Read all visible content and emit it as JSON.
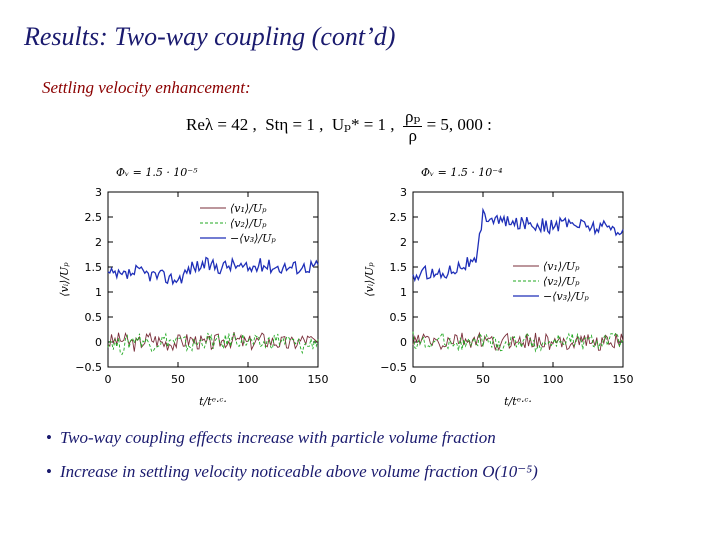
{
  "slide": {
    "title": "Results: Two-way coupling (cont’d)",
    "subtitle": "Settling velocity enhancement:",
    "params": {
      "re": "Reλ = 42 ,",
      "st": "Stη = 1 ,",
      "up": "Uₚ* = 1 ,",
      "rho_num": "ρₚ",
      "rho_den": "ρ",
      "rho_val": "= 5, 000 :"
    },
    "bullets": [
      "Two-way coupling effects increase with particle volume fraction",
      "Increase in settling velocity noticeable above volume fraction O(10⁻⁵)"
    ]
  },
  "colors": {
    "v1": "#7a2e3a",
    "v2": "#22aa22",
    "v3": "#1f2fb8",
    "title": "#1a1a6e",
    "subtitle": "#8b0000"
  },
  "chart_data": [
    {
      "type": "line",
      "title": "Φᵥ = 1.5 · 10⁻⁵",
      "xlabel": "t/tᵉ·ᶜ·",
      "ylabel": "⟨vᵢ⟩/Uₚ",
      "xlim": [
        0,
        150
      ],
      "ylim": [
        -0.5,
        3
      ],
      "xticks": [
        "0",
        "50",
        "100",
        "150"
      ],
      "yticks": [
        "−0.5",
        "0",
        "0.5",
        "1",
        "1.5",
        "2",
        "2.5",
        "3"
      ],
      "legend_position": "top-left",
      "x": [
        0,
        10,
        20,
        30,
        40,
        50,
        60,
        70,
        80,
        90,
        100,
        110,
        120,
        130,
        140,
        150
      ],
      "series": [
        {
          "name": "⟨v₁⟩/Uₚ",
          "style": "solid",
          "values": [
            0.0,
            0.05,
            -0.05,
            0.08,
            -0.02,
            0.0,
            0.05,
            -0.05,
            0.02,
            0.05,
            -0.03,
            0.05,
            0.0,
            -0.05,
            0.05,
            0.0
          ]
        },
        {
          "name": "⟨v₂⟩/Uₚ",
          "style": "dashed",
          "values": [
            0.05,
            -0.1,
            0.1,
            -0.05,
            0.05,
            0.0,
            -0.08,
            0.05,
            -0.05,
            0.08,
            0.0,
            -0.05,
            0.05,
            0.0,
            -0.1,
            0.05
          ]
        },
        {
          "name": "−⟨v₃⟩/Uₚ",
          "style": "solid",
          "values": [
            1.35,
            1.3,
            1.4,
            1.35,
            1.3,
            1.25,
            1.5,
            1.55,
            1.5,
            1.55,
            1.45,
            1.55,
            1.5,
            1.5,
            1.5,
            1.55
          ]
        }
      ]
    },
    {
      "type": "line",
      "title": "Φᵥ = 1.5 · 10⁻⁴",
      "xlabel": "t/tᵉ·ᶜ·",
      "ylabel": "⟨vᵢ⟩/Uₚ",
      "xlim": [
        0,
        150
      ],
      "ylim": [
        -0.5,
        3
      ],
      "xticks": [
        "0",
        "50",
        "100",
        "150"
      ],
      "yticks": [
        "−0.5",
        "0",
        "0.5",
        "1",
        "1.5",
        "2",
        "2.5",
        "3"
      ],
      "legend_position": "right-middle",
      "x": [
        0,
        10,
        20,
        30,
        40,
        45,
        50,
        60,
        70,
        80,
        90,
        100,
        110,
        120,
        130,
        140,
        150
      ],
      "series": [
        {
          "name": "⟨v₁⟩/Uₚ",
          "style": "solid",
          "values": [
            0.0,
            0.05,
            -0.05,
            0.05,
            0.0,
            0.05,
            0.0,
            -0.05,
            0.05,
            0.0,
            0.05,
            -0.05,
            0.0,
            0.05,
            -0.02,
            0.0,
            0.02
          ]
        },
        {
          "name": "⟨v₂⟩/Uₚ",
          "style": "dashed",
          "values": [
            0.05,
            -0.05,
            0.05,
            0.0,
            -0.05,
            0.0,
            0.05,
            -0.05,
            0.0,
            0.05,
            -0.05,
            0.0,
            0.05,
            -0.02,
            0.0,
            0.05,
            0.0
          ]
        },
        {
          "name": "−⟨v₃⟩/Uₚ",
          "style": "solid",
          "values": [
            1.3,
            1.4,
            1.35,
            1.5,
            1.6,
            1.55,
            2.55,
            2.45,
            2.35,
            2.4,
            2.35,
            2.3,
            2.4,
            2.35,
            2.3,
            2.3,
            2.25
          ]
        }
      ]
    }
  ]
}
